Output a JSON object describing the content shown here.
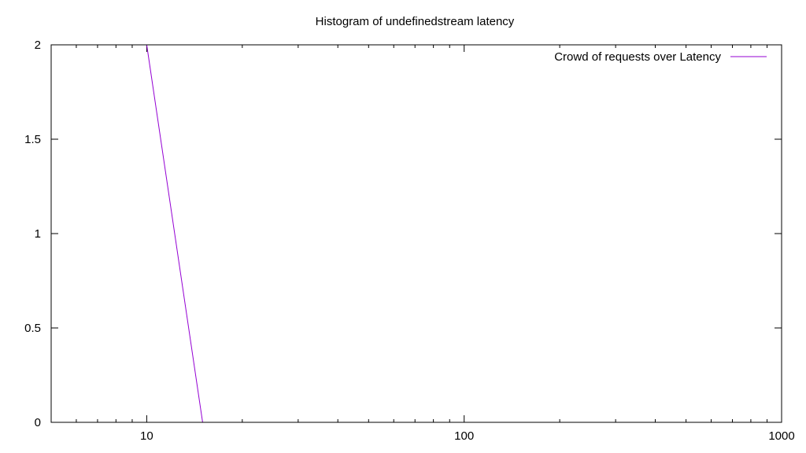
{
  "chart_data": {
    "type": "line",
    "title": "Histogram of undefinedstream latency",
    "xlabel": "",
    "ylabel": "",
    "x_scale": "log",
    "xlim": [
      5,
      1000
    ],
    "ylim": [
      0,
      2
    ],
    "x_ticks": [
      10,
      100,
      1000
    ],
    "x_tick_labels": [
      "10",
      "100",
      "1000"
    ],
    "y_ticks": [
      0,
      0.5,
      1,
      1.5,
      2
    ],
    "y_tick_labels": [
      "0",
      "0.5",
      "1",
      "1.5",
      "2"
    ],
    "grid": false,
    "legend_position": "top-right",
    "series": [
      {
        "name": "Crowd of requests over Latency",
        "color": "#9400d3",
        "x": [
          10,
          15
        ],
        "y": [
          2,
          0
        ]
      }
    ]
  }
}
